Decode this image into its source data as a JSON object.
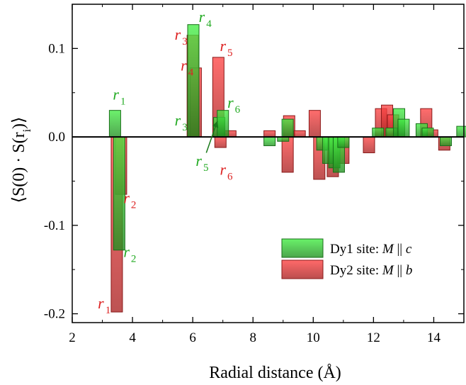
{
  "chart_data": {
    "type": "bar",
    "xlabel": "Radial distance (Å)",
    "ylabel": "⟨S(0) · S(r",
    "ylabel_sub": "i",
    "ylabel_end": ")⟩",
    "xlim": [
      2,
      15
    ],
    "ylim": [
      -0.21,
      0.15
    ],
    "xticks": [
      2,
      4,
      6,
      8,
      10,
      12,
      14
    ],
    "xtick_labels": [
      "2",
      "4",
      "6",
      "8",
      "10",
      "12",
      "14"
    ],
    "yticks": [
      -0.2,
      -0.1,
      0.0,
      0.1
    ],
    "ytick_labels": [
      "-0.2",
      "-0.1",
      "0.0",
      "0.1"
    ],
    "grid": false,
    "legend_placement": "lower-right",
    "series": [
      {
        "name": "Dy1 site: M || c",
        "label_main": "Dy1 site: ",
        "label_m": "M",
        "label_rel": " || ",
        "label_axis": "c",
        "color": "#22cc22",
        "bars": [
          {
            "x": 3.42,
            "y": 0.03
          },
          {
            "x": 3.56,
            "y": -0.128
          },
          {
            "x": 6.02,
            "y": 0.127
          },
          {
            "x": 6.88,
            "y": 0.022
          },
          {
            "x": 7.0,
            "y": 0.03
          },
          {
            "x": 8.55,
            "y": -0.01
          },
          {
            "x": 9.0,
            "y": -0.005
          },
          {
            "x": 9.15,
            "y": 0.02
          },
          {
            "x": 10.3,
            "y": -0.015
          },
          {
            "x": 10.5,
            "y": -0.03
          },
          {
            "x": 10.7,
            "y": -0.035
          },
          {
            "x": 10.85,
            "y": -0.04
          },
          {
            "x": 11.0,
            "y": -0.012
          },
          {
            "x": 12.15,
            "y": 0.01
          },
          {
            "x": 12.6,
            "y": 0.01
          },
          {
            "x": 12.85,
            "y": 0.032
          },
          {
            "x": 13.0,
            "y": 0.02
          },
          {
            "x": 13.6,
            "y": 0.015
          },
          {
            "x": 13.8,
            "y": 0.01
          },
          {
            "x": 14.4,
            "y": -0.01
          },
          {
            "x": 14.95,
            "y": 0.012
          }
        ]
      },
      {
        "name": "Dy2 site: M || b",
        "label_main": "Dy2 site: ",
        "label_m": "M",
        "label_rel": " || ",
        "label_axis": "b",
        "color": "#dd2222",
        "bars": [
          {
            "x": 3.48,
            "y": -0.198
          },
          {
            "x": 3.62,
            "y": -0.065
          },
          {
            "x": 6.0,
            "y": 0.115
          },
          {
            "x": 6.1,
            "y": 0.078
          },
          {
            "x": 6.85,
            "y": 0.09
          },
          {
            "x": 6.92,
            "y": -0.012
          },
          {
            "x": 7.25,
            "y": 0.007
          },
          {
            "x": 8.55,
            "y": 0.007
          },
          {
            "x": 9.15,
            "y": -0.04
          },
          {
            "x": 9.2,
            "y": 0.024
          },
          {
            "x": 9.55,
            "y": 0.007
          },
          {
            "x": 10.05,
            "y": 0.03
          },
          {
            "x": 10.2,
            "y": -0.048
          },
          {
            "x": 10.65,
            "y": -0.045
          },
          {
            "x": 11.0,
            "y": -0.03
          },
          {
            "x": 11.85,
            "y": -0.018
          },
          {
            "x": 12.25,
            "y": 0.032
          },
          {
            "x": 12.45,
            "y": 0.036
          },
          {
            "x": 12.65,
            "y": 0.025
          },
          {
            "x": 13.75,
            "y": 0.032
          },
          {
            "x": 13.95,
            "y": 0.008
          },
          {
            "x": 14.35,
            "y": -0.015
          }
        ]
      }
    ],
    "annotations": [
      {
        "base": "r",
        "sub": "1",
        "color": "#22aa22",
        "x": 3.35,
        "y": 0.042
      },
      {
        "base": "r",
        "sub": "2",
        "color": "#dd2222",
        "x": 3.7,
        "y": -0.075
      },
      {
        "base": "r",
        "sub": "2",
        "color": "#22aa22",
        "x": 3.7,
        "y": -0.136
      },
      {
        "base": "r",
        "sub": "1",
        "color": "#dd2222",
        "x": 2.85,
        "y": -0.194
      },
      {
        "base": "r",
        "sub": "3",
        "color": "#dd2222",
        "x": 5.4,
        "y": 0.11
      },
      {
        "base": "r",
        "sub": "4",
        "color": "#dd2222",
        "x": 5.6,
        "y": 0.075
      },
      {
        "base": "r",
        "sub": "3",
        "color": "#22aa22",
        "x": 5.4,
        "y": 0.013
      },
      {
        "base": "r",
        "sub": "4",
        "color": "#22aa22",
        "x": 6.2,
        "y": 0.13
      },
      {
        "base": "r",
        "sub": "5",
        "color": "#dd2222",
        "x": 6.9,
        "y": 0.097
      },
      {
        "base": "r",
        "sub": "6",
        "color": "#22aa22",
        "x": 7.15,
        "y": 0.033
      },
      {
        "base": "r",
        "sub": "5",
        "color": "#22aa22",
        "x": 6.1,
        "y": -0.033
      },
      {
        "base": "r",
        "sub": "6",
        "color": "#dd2222",
        "x": 6.9,
        "y": -0.043
      }
    ]
  }
}
